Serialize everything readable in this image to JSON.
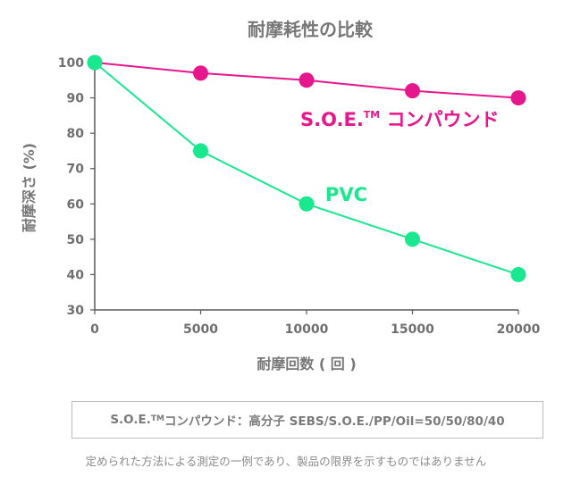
{
  "chart_data": {
    "type": "line",
    "title": "耐摩耗性の比較",
    "xlabel": "耐摩回数 ( 回 )",
    "ylabel": "耐摩深さ (%)",
    "x": [
      0,
      5000,
      10000,
      15000,
      20000
    ],
    "xticks": [
      "0",
      "5000",
      "10000",
      "15000",
      "20000"
    ],
    "yticks": [
      "30",
      "40",
      "50",
      "60",
      "70",
      "80",
      "90",
      "100"
    ],
    "xlim": [
      0,
      20000
    ],
    "ylim": [
      30,
      100
    ],
    "grid": false,
    "series": [
      {
        "label_main": "S.O.E.",
        "label_tm": "TM",
        "label_suffix": " コンパウンド",
        "color": "#e6168c",
        "values": [
          100,
          97,
          95,
          92,
          90
        ]
      },
      {
        "label_main": "PVC",
        "color": "#19e88f",
        "values": [
          100,
          75,
          60,
          50,
          40
        ]
      }
    ]
  },
  "note": {
    "prefix": "S.O.E.",
    "tm": "TM",
    "text": " コンパウンド：高分子 SEBS/S.O.E./PP/Oil=50/50/80/40"
  },
  "disclaimer": "定められた方法による測定の一例であり、製品の限界を示すものではありません",
  "colors": {
    "axis": "#5a5a5a",
    "text": "#777777"
  }
}
